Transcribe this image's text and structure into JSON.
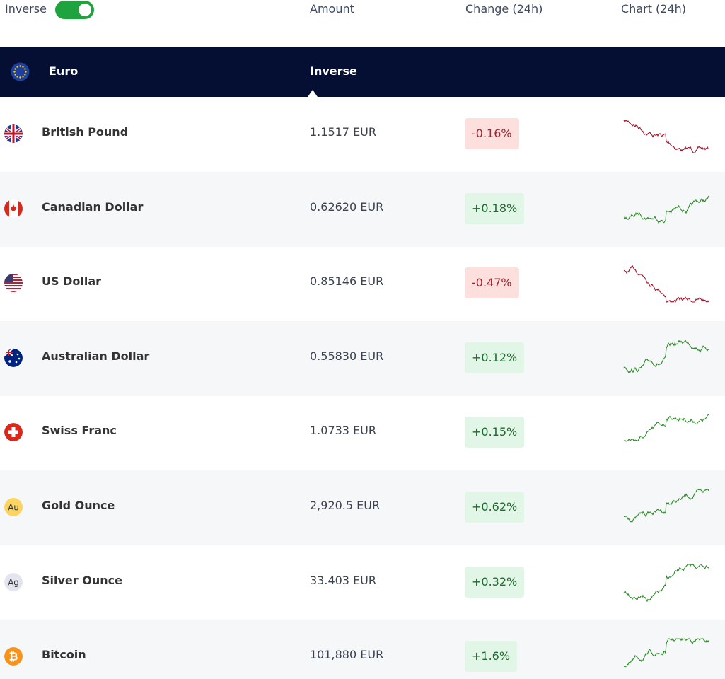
{
  "header": {
    "toggle_label": "Inverse",
    "columns": [
      "Amount",
      "Change (24h)",
      "Chart (24h)"
    ]
  },
  "base": {
    "name": "Euro",
    "mode": "Inverse"
  },
  "rows": [
    {
      "name": "British Pound",
      "amount": "1.1517 EUR",
      "change": "-0.16%"
    },
    {
      "name": "Canadian Dollar",
      "amount": "0.62620 EUR",
      "change": "+0.18%"
    },
    {
      "name": "US Dollar",
      "amount": "0.85146 EUR",
      "change": "-0.47%"
    },
    {
      "name": "Australian Dollar",
      "amount": "0.55830 EUR",
      "change": "+0.12%"
    },
    {
      "name": "Swiss Franc",
      "amount": "1.0733 EUR",
      "change": "+0.15%"
    },
    {
      "name": "Gold Ounce",
      "amount": "2,920.5 EUR",
      "change": "+0.62%",
      "icon": "Au"
    },
    {
      "name": "Silver Ounce",
      "amount": "33.403 EUR",
      "change": "+0.32%",
      "icon": "Ag"
    },
    {
      "name": "Bitcoin",
      "amount": "101,880 EUR",
      "change": "+1.6%",
      "icon": "₿"
    }
  ]
}
